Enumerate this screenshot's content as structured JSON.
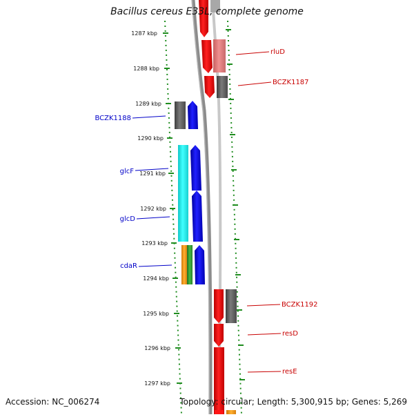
{
  "title": "Bacillus cereus E33L, complete genome",
  "accession": "Accession: NC_006274",
  "topology": "Topology: circular; Length: 5,300,915 bp; Genes: 5,269",
  "colors": {
    "backbone": "#8c8c8c",
    "tick": "#1e8c1e",
    "forward_label": "#0000c8",
    "reverse_label": "#c80000",
    "red": "#ff1414",
    "light_red": "#e98080",
    "gray": "#6f6f6f",
    "blue": "#1010ee",
    "cyan": "#22f0f0",
    "orange": "#f2a020",
    "green": "#33aa33"
  },
  "scale": {
    "unit": "kbp",
    "ticks": [
      {
        "label": "1287 kbp",
        "value": 1287
      },
      {
        "label": "1288 kbp",
        "value": 1288
      },
      {
        "label": "1289 kbp",
        "value": 1289
      },
      {
        "label": "1290 kbp",
        "value": 1290
      },
      {
        "label": "1291 kbp",
        "value": 1291
      },
      {
        "label": "1292 kbp",
        "value": 1292
      },
      {
        "label": "1293 kbp",
        "value": 1293
      },
      {
        "label": "1294 kbp",
        "value": 1294
      },
      {
        "label": "1295 kbp",
        "value": 1295
      },
      {
        "label": "1296 kbp",
        "value": 1296
      },
      {
        "label": "1297 kbp",
        "value": 1297
      }
    ]
  },
  "gene_labels": [
    {
      "name": "rluD",
      "strand": "reverse"
    },
    {
      "name": "BCZK1187",
      "strand": "reverse"
    },
    {
      "name": "BCZK1188",
      "strand": "forward"
    },
    {
      "name": "glcF",
      "strand": "forward"
    },
    {
      "name": "glcD",
      "strand": "forward"
    },
    {
      "name": "cdaR",
      "strand": "forward"
    },
    {
      "name": "BCZK1192",
      "strand": "reverse"
    },
    {
      "name": "resD",
      "strand": "reverse"
    },
    {
      "name": "resE",
      "strand": "reverse"
    }
  ]
}
